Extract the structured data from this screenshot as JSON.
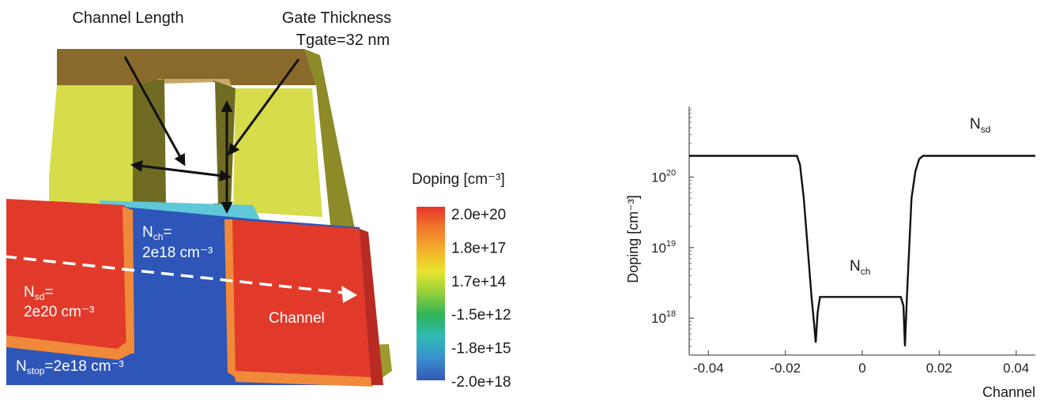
{
  "device": {
    "callout_channel_length": "Channel Length",
    "callout_gate_thickness": "Gate Thickness",
    "callout_tgate": "Tgate=32 nm",
    "nch_label_main": "N",
    "nch_label_sub": "ch",
    "nch_label_eq": "=",
    "nch_value": "2e18 cm⁻³",
    "nsd_label_main": "N",
    "nsd_label_sub": "sd",
    "nsd_label_eq": "=",
    "nsd_value": "2e20 cm⁻³",
    "nstop_label_main": "N",
    "nstop_label_sub": "stop",
    "nstop_value": "=2e18 cm⁻³",
    "channel_label": "Channel"
  },
  "colorbar": {
    "title": "Doping [cm⁻³]",
    "ticks": [
      "2.0e+20",
      "1.8e+17",
      "1.7e+14",
      "-1.5e+12",
      "-1.8e+15",
      "-2.0e+18"
    ],
    "colors": [
      "#e8342b",
      "#f07a2a",
      "#f4b12c",
      "#e8e52e",
      "#8fcf3a",
      "#2fb35a",
      "#2fb9b4",
      "#3a8fd0",
      "#3457b4"
    ]
  },
  "chart_data": {
    "type": "line",
    "title": "",
    "xlabel": "Channel",
    "ylabel": "Doping [cm⁻³]",
    "yscale": "log",
    "xlim": [
      -0.045,
      0.045
    ],
    "ylim": [
      3e+17,
      1e+21
    ],
    "x_ticks": [
      "-0.04",
      "-0.02",
      "0",
      "0.02",
      "0.04"
    ],
    "x_tick_values": [
      -0.04,
      -0.02,
      0,
      0.02,
      0.04
    ],
    "y_ticks_base": "10",
    "y_ticks_exp": [
      "18",
      "19",
      "20"
    ],
    "y_tick_values": [
      1e+18,
      1e+19,
      1e+20
    ],
    "series": [
      {
        "x": [
          -0.045,
          -0.017,
          -0.0162,
          -0.0152,
          -0.0142,
          -0.0132,
          -0.0125,
          -0.0121,
          -0.0116,
          -0.011,
          -0.01,
          0.0,
          0.01,
          0.0107,
          0.0111,
          0.0116,
          0.0122,
          0.0128,
          0.0138,
          0.0148,
          0.0158,
          0.0166,
          0.0175,
          0.045
        ],
        "y": [
          2e+20,
          2e+20,
          1.5e+20,
          5e+19,
          1e+19,
          2e+18,
          8e+17,
          4.5e+17,
          1.2e+18,
          2e+18,
          2e+18,
          2e+18,
          2e+18,
          1.5e+18,
          4e+17,
          2e+18,
          1e+19,
          5e+19,
          1.2e+20,
          1.8e+20,
          2e+20,
          2e+20,
          2e+20,
          2e+20
        ]
      }
    ],
    "annotations": [
      {
        "main": "N",
        "sub": "sd"
      },
      {
        "main": "N",
        "sub": "ch"
      }
    ]
  }
}
